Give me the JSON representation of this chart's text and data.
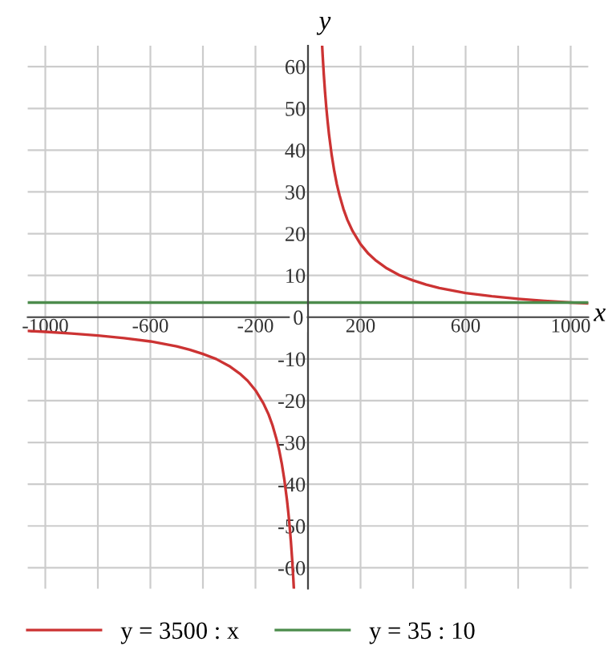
{
  "chart_data": {
    "type": "line",
    "xlabel": "x",
    "ylabel": "y",
    "xlim": [
      -1067,
      1067
    ],
    "ylim": [
      -65,
      65
    ],
    "xticks": [
      -1000,
      {
        "value": -800,
        "label": null
      },
      -600,
      {
        "value": -400,
        "label": null
      },
      -200,
      {
        "value": 0,
        "label": null
      },
      200,
      {
        "value": 400,
        "label": null
      },
      600,
      {
        "value": 800,
        "label": null
      },
      1000
    ],
    "yticks": [
      -60,
      -50,
      -40,
      -30,
      -20,
      -10,
      0,
      10,
      20,
      30,
      40,
      50,
      60
    ],
    "grid": true,
    "legend": "bottom left",
    "marker": "none",
    "line_style": "solid",
    "series": [
      {
        "name": "y = 3500 : x",
        "color": "#cc3333",
        "x": [
          -1067,
          -1000,
          -900,
          -800,
          -700,
          -600,
          -500,
          -450,
          -400,
          -350,
          -300,
          -260,
          -230,
          -200,
          -170,
          -150,
          -135,
          -120,
          -110,
          -100,
          -90,
          -80,
          -75,
          -70,
          -65,
          -60,
          -56,
          -54,
          0,
          54,
          56,
          60,
          65,
          70,
          75,
          80,
          90,
          100,
          110,
          120,
          135,
          150,
          170,
          200,
          230,
          260,
          300,
          350,
          400,
          450,
          500,
          600,
          700,
          800,
          900,
          1000,
          1067
        ],
        "values": [
          -3.3,
          -3.5,
          -3.9,
          -4.4,
          -5,
          -5.8,
          -7,
          -7.8,
          -8.8,
          -10,
          -11.7,
          -13.5,
          -15.2,
          -17.5,
          -20.6,
          -23.3,
          -25.9,
          -29.2,
          -31.8,
          -35,
          -38.9,
          -43.8,
          -46.7,
          -50,
          -53.8,
          -58.3,
          -62.5,
          -64.8,
          null,
          64.8,
          62.5,
          58.3,
          53.8,
          50,
          46.7,
          43.8,
          38.9,
          35,
          31.8,
          29.2,
          25.9,
          23.3,
          20.6,
          17.5,
          15.2,
          13.5,
          11.7,
          10,
          8.8,
          7.8,
          7,
          5.8,
          5,
          4.4,
          3.9,
          3.5,
          3.3
        ]
      },
      {
        "name": "y = 35 : 10",
        "color": "#4c8c4c",
        "x": [
          -1067,
          1067
        ],
        "values": [
          3.5,
          3.5
        ]
      }
    ]
  }
}
